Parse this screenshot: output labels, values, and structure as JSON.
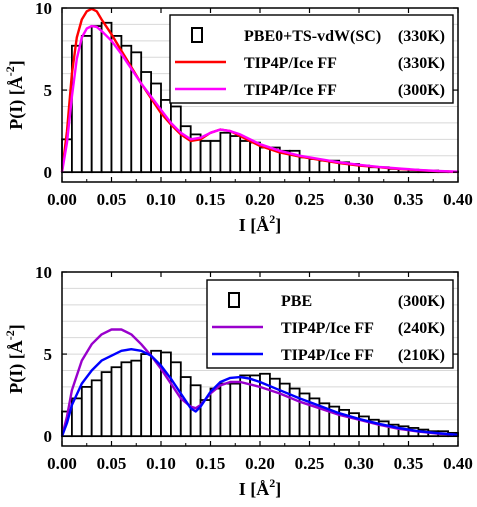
{
  "chart_data": [
    {
      "type": "bar",
      "xlabel": "I [Å",
      "xlabel_sup": "2",
      "xlabel_close": "]",
      "ylabel": "P(I) [Å",
      "ylabel_sup": "-2",
      "ylabel_close": "]",
      "xlim": [
        0,
        0.4
      ],
      "ylim": [
        -0.6,
        10
      ],
      "xticks": [
        0.0,
        0.05,
        0.1,
        0.15,
        0.2,
        0.25,
        0.3,
        0.35,
        0.4
      ],
      "xtick_labels": [
        "0.00",
        "0.05",
        "0.10",
        "0.15",
        "0.20",
        "0.25",
        "0.30",
        "0.35",
        "0.40"
      ],
      "yticks": [
        0,
        5,
        10
      ],
      "ytick_labels": [
        "0",
        "5",
        "10"
      ],
      "grid": true,
      "legend_position": "top-right",
      "histogram": {
        "name": "PBE0+TS-vdW(SC)",
        "temp": "(330K)",
        "bin_width": 0.01,
        "x": [
          0.0,
          0.01,
          0.02,
          0.03,
          0.04,
          0.05,
          0.06,
          0.07,
          0.08,
          0.09,
          0.1,
          0.11,
          0.12,
          0.13,
          0.14,
          0.15,
          0.16,
          0.17,
          0.18,
          0.19,
          0.2,
          0.21,
          0.22,
          0.23,
          0.24,
          0.25,
          0.26,
          0.27,
          0.28,
          0.29,
          0.3,
          0.31,
          0.32,
          0.33,
          0.34,
          0.35,
          0.36,
          0.37,
          0.38,
          0.39
        ],
        "values": [
          2.0,
          7.7,
          8.3,
          8.9,
          9.1,
          8.3,
          7.7,
          7.3,
          6.1,
          5.4,
          4.4,
          4.0,
          2.8,
          2.3,
          1.9,
          1.9,
          2.4,
          2.2,
          1.9,
          1.8,
          1.5,
          1.5,
          1.3,
          1.3,
          0.9,
          0.8,
          0.7,
          0.7,
          0.6,
          0.5,
          0.4,
          0.3,
          0.3,
          0.2,
          0.2,
          0.15,
          0.1,
          0.1,
          0.05,
          0.03
        ]
      },
      "series": [
        {
          "name": "TIP4P/Ice FF",
          "temp": "(330K)",
          "color": "#ff0000",
          "x": [
            0.0,
            0.005,
            0.01,
            0.015,
            0.02,
            0.025,
            0.03,
            0.035,
            0.04,
            0.05,
            0.06,
            0.07,
            0.08,
            0.09,
            0.1,
            0.11,
            0.12,
            0.13,
            0.14,
            0.15,
            0.16,
            0.17,
            0.18,
            0.19,
            0.2,
            0.22,
            0.24,
            0.26,
            0.28,
            0.3,
            0.32,
            0.34,
            0.36,
            0.38,
            0.4
          ],
          "y": [
            0.0,
            2.5,
            6.0,
            8.2,
            9.3,
            9.8,
            9.95,
            9.8,
            9.3,
            8.4,
            7.4,
            6.4,
            5.4,
            4.5,
            3.6,
            2.9,
            2.3,
            1.9,
            2.0,
            2.4,
            2.6,
            2.5,
            2.2,
            1.9,
            1.6,
            1.2,
            0.95,
            0.75,
            0.55,
            0.4,
            0.3,
            0.2,
            0.12,
            0.06,
            0.02
          ]
        },
        {
          "name": "TIP4P/Ice FF",
          "temp": "(300K)",
          "color": "#ff00ff",
          "x": [
            0.0,
            0.005,
            0.01,
            0.015,
            0.02,
            0.025,
            0.03,
            0.035,
            0.04,
            0.05,
            0.06,
            0.07,
            0.08,
            0.09,
            0.1,
            0.11,
            0.12,
            0.13,
            0.14,
            0.15,
            0.16,
            0.17,
            0.18,
            0.19,
            0.2,
            0.22,
            0.24,
            0.26,
            0.28,
            0.3,
            0.32,
            0.34,
            0.36,
            0.38,
            0.4
          ],
          "y": [
            0.0,
            1.8,
            4.6,
            6.9,
            8.2,
            8.75,
            8.9,
            8.85,
            8.6,
            8.0,
            7.2,
            6.3,
            5.4,
            4.6,
            3.8,
            3.0,
            2.4,
            2.0,
            2.1,
            2.4,
            2.6,
            2.5,
            2.3,
            2.0,
            1.7,
            1.3,
            1.0,
            0.8,
            0.6,
            0.45,
            0.32,
            0.22,
            0.14,
            0.07,
            0.03
          ]
        }
      ]
    },
    {
      "type": "bar",
      "xlabel": "I [Å",
      "xlabel_sup": "2",
      "xlabel_close": "]",
      "ylabel": "P(I) [Å",
      "ylabel_sup": "-2",
      "ylabel_close": "]",
      "xlim": [
        0,
        0.4
      ],
      "ylim": [
        -0.6,
        10
      ],
      "xticks": [
        0.0,
        0.05,
        0.1,
        0.15,
        0.2,
        0.25,
        0.3,
        0.35,
        0.4
      ],
      "xtick_labels": [
        "0.00",
        "0.05",
        "0.10",
        "0.15",
        "0.20",
        "0.25",
        "0.30",
        "0.35",
        "0.40"
      ],
      "yticks": [
        0,
        5,
        10
      ],
      "ytick_labels": [
        "0",
        "5",
        "10"
      ],
      "grid": true,
      "legend_position": "top-right",
      "histogram": {
        "name": "PBE",
        "temp": "(300K)",
        "bin_width": 0.01,
        "x": [
          0.0,
          0.01,
          0.02,
          0.03,
          0.04,
          0.05,
          0.06,
          0.07,
          0.08,
          0.09,
          0.1,
          0.11,
          0.12,
          0.13,
          0.14,
          0.15,
          0.16,
          0.17,
          0.18,
          0.19,
          0.2,
          0.21,
          0.22,
          0.23,
          0.24,
          0.25,
          0.26,
          0.27,
          0.28,
          0.29,
          0.3,
          0.31,
          0.32,
          0.33,
          0.34,
          0.35,
          0.36,
          0.37,
          0.38,
          0.39
        ],
        "values": [
          1.5,
          2.3,
          3.0,
          3.4,
          3.9,
          4.2,
          4.5,
          4.6,
          5.0,
          5.2,
          5.1,
          4.5,
          3.6,
          3.1,
          2.2,
          2.9,
          3.2,
          3.2,
          3.7,
          3.7,
          3.8,
          3.5,
          3.2,
          2.9,
          2.6,
          2.3,
          2.0,
          1.8,
          1.6,
          1.4,
          1.2,
          1.0,
          0.9,
          0.7,
          0.6,
          0.5,
          0.4,
          0.3,
          0.3,
          0.2
        ]
      },
      "series": [
        {
          "name": "TIP4P/Ice FF",
          "temp": "(240K)",
          "color": "#9900cc",
          "x": [
            0.0,
            0.005,
            0.01,
            0.02,
            0.03,
            0.04,
            0.05,
            0.06,
            0.07,
            0.08,
            0.09,
            0.1,
            0.11,
            0.12,
            0.13,
            0.135,
            0.14,
            0.15,
            0.16,
            0.17,
            0.18,
            0.2,
            0.22,
            0.24,
            0.26,
            0.28,
            0.3,
            0.32,
            0.34,
            0.36,
            0.38,
            0.4
          ],
          "y": [
            0.0,
            1.2,
            2.8,
            4.6,
            5.6,
            6.2,
            6.5,
            6.5,
            6.2,
            5.6,
            4.9,
            4.1,
            3.2,
            2.3,
            1.8,
            1.7,
            1.9,
            2.6,
            3.1,
            3.3,
            3.3,
            3.0,
            2.6,
            2.1,
            1.7,
            1.3,
            1.0,
            0.7,
            0.45,
            0.28,
            0.15,
            0.08
          ]
        },
        {
          "name": "TIP4P/Ice FF",
          "temp": "(210K)",
          "color": "#0000ff",
          "x": [
            0.0,
            0.005,
            0.01,
            0.02,
            0.03,
            0.04,
            0.05,
            0.06,
            0.07,
            0.08,
            0.09,
            0.1,
            0.11,
            0.12,
            0.13,
            0.135,
            0.14,
            0.15,
            0.16,
            0.17,
            0.18,
            0.19,
            0.2,
            0.22,
            0.24,
            0.26,
            0.28,
            0.3,
            0.32,
            0.34,
            0.36,
            0.38,
            0.4
          ],
          "y": [
            0.0,
            0.8,
            1.9,
            3.2,
            4.0,
            4.6,
            4.9,
            5.2,
            5.3,
            5.2,
            4.9,
            4.3,
            3.5,
            2.6,
            1.7,
            1.5,
            1.8,
            2.7,
            3.3,
            3.55,
            3.6,
            3.5,
            3.3,
            2.8,
            2.3,
            1.85,
            1.4,
            1.05,
            0.75,
            0.5,
            0.3,
            0.18,
            0.08
          ]
        }
      ]
    }
  ]
}
